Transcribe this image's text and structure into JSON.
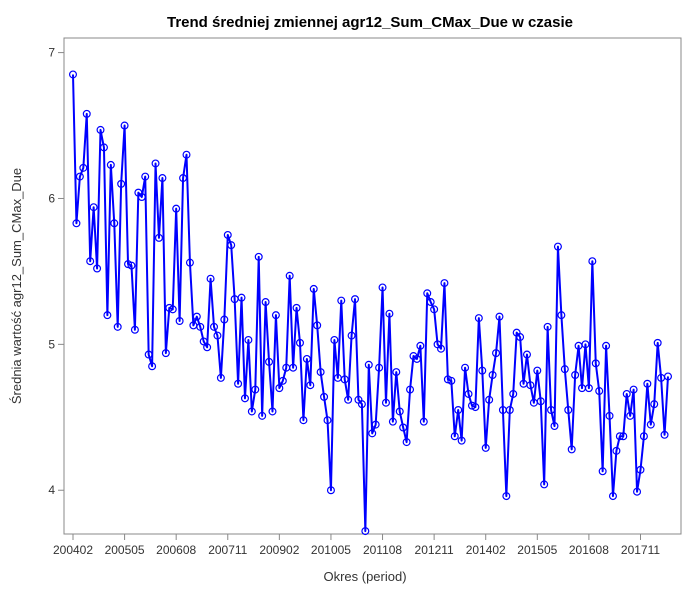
{
  "chart_data": {
    "type": "line",
    "title": "Trend średniej zmiennej agr12_Sum_CMax_Due w czasie",
    "xlabel": "Okres (period)",
    "ylabel": "Średnia wartość agr12_Sum_CMax_Due",
    "x_ticks": [
      "200402",
      "200505",
      "200608",
      "200711",
      "200902",
      "201005",
      "201108",
      "201211",
      "201402",
      "201505",
      "201608",
      "201711"
    ],
    "y_ticks": [
      4,
      5,
      6,
      7
    ],
    "ylim": [
      3.7,
      7.1
    ],
    "x_start": "2004-02",
    "series": [
      {
        "name": "",
        "color": "#0000ff",
        "values": [
          6.85,
          5.83,
          6.15,
          6.21,
          6.58,
          5.57,
          5.94,
          5.52,
          6.47,
          6.35,
          5.2,
          6.23,
          5.83,
          5.12,
          6.1,
          6.5,
          5.55,
          5.54,
          5.1,
          6.04,
          6.01,
          6.15,
          4.93,
          4.85,
          6.24,
          5.73,
          6.14,
          4.94,
          5.25,
          5.24,
          5.93,
          5.16,
          6.14,
          6.3,
          5.56,
          5.13,
          5.19,
          5.12,
          5.02,
          4.98,
          5.45,
          5.12,
          5.06,
          4.77,
          5.17,
          5.75,
          5.68,
          5.31,
          4.73,
          5.32,
          4.63,
          5.03,
          4.54,
          4.69,
          5.6,
          4.51,
          5.29,
          4.88,
          4.54,
          5.2,
          4.7,
          4.75,
          4.84,
          5.47,
          4.84,
          5.25,
          5.01,
          4.48,
          4.9,
          4.72,
          5.38,
          5.13,
          4.81,
          4.64,
          4.48,
          4.0,
          5.03,
          4.77,
          5.3,
          4.76,
          4.62,
          5.06,
          5.31,
          4.62,
          4.59,
          3.72,
          4.86,
          4.39,
          4.45,
          4.84,
          5.39,
          4.6,
          5.21,
          4.47,
          4.81,
          4.54,
          4.43,
          4.33,
          4.69,
          4.92,
          4.9,
          4.99,
          4.47,
          5.35,
          5.29,
          5.24,
          5.0,
          4.97,
          5.42,
          4.76,
          4.75,
          4.37,
          4.55,
          4.34,
          4.84,
          4.66,
          4.58,
          4.57,
          5.18,
          4.82,
          4.29,
          4.62,
          4.79,
          4.94,
          5.19,
          4.55,
          3.96,
          4.55,
          4.66,
          5.08,
          5.05,
          4.73,
          4.93,
          4.72,
          4.6,
          4.82,
          4.61,
          4.04,
          5.12,
          4.55,
          4.44,
          5.67,
          5.2,
          4.83,
          4.55,
          4.28,
          4.79,
          4.99,
          4.7,
          5.0,
          4.7,
          5.57,
          4.87,
          4.68,
          4.13,
          4.99,
          4.51,
          3.96,
          4.27,
          4.37,
          4.37,
          4.66,
          4.51,
          4.69,
          3.99,
          4.14,
          4.37,
          4.73,
          4.45,
          4.59,
          5.01,
          4.77,
          4.38,
          4.78
        ]
      }
    ],
    "grid": false,
    "legend": "none"
  }
}
